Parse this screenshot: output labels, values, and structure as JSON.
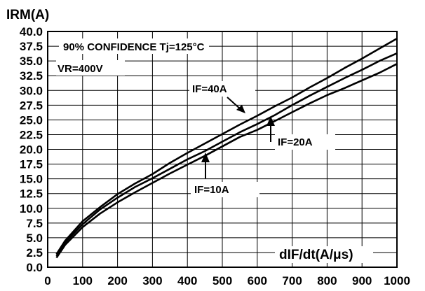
{
  "chart_data": {
    "type": "line",
    "ylabel": "IRM(A)",
    "xlabel": "dIF/dt(A/μs)",
    "xlim": [
      0,
      1000
    ],
    "ylim": [
      0,
      40
    ],
    "x_ticks": [
      0,
      100,
      200,
      300,
      400,
      500,
      600,
      700,
      800,
      900,
      1000
    ],
    "x_tick_labels": [
      "0",
      "100",
      "200",
      "300",
      "400",
      "500",
      "600",
      "700",
      "800",
      "900",
      "1000"
    ],
    "y_ticks": [
      0,
      2.5,
      5,
      7.5,
      10,
      12.5,
      15,
      17.5,
      20,
      22.5,
      25,
      27.5,
      30,
      32.5,
      35,
      37.5,
      40
    ],
    "y_tick_labels": [
      "0.0",
      "2.5",
      "5.0",
      "7.5",
      "10.0",
      "12.5",
      "15.0",
      "17.5",
      "20.0",
      "22.5",
      "25.0",
      "27.5",
      "30.0",
      "32.5",
      "35.0",
      "37.5",
      "40.0"
    ],
    "grid": true,
    "annotations": {
      "confidence": "90% CONFIDENCE Tj=125°C",
      "voltage": "VR=400V"
    },
    "series": [
      {
        "name": "IF=40A",
        "x": [
          25,
          50,
          100,
          150,
          200,
          250,
          300,
          350,
          400,
          450,
          500,
          550,
          600,
          650,
          700,
          750,
          800,
          850,
          900,
          950,
          1000
        ],
        "y": [
          2.2,
          4.5,
          7.8,
          10.2,
          12.4,
          14.2,
          15.8,
          17.7,
          19.4,
          21.0,
          22.6,
          24.2,
          25.7,
          27.3,
          28.8,
          30.5,
          32.1,
          33.8,
          35.4,
          37.1,
          38.8
        ]
      },
      {
        "name": "IF=20A",
        "x": [
          25,
          50,
          100,
          150,
          200,
          250,
          300,
          350,
          400,
          450,
          500,
          550,
          600,
          650,
          700,
          750,
          800,
          850,
          900,
          950,
          1000
        ],
        "y": [
          1.9,
          4.2,
          7.3,
          9.8,
          11.8,
          13.6,
          15.1,
          16.7,
          18.3,
          19.7,
          21.3,
          22.9,
          24.3,
          25.8,
          27.5,
          29.1,
          30.6,
          32.1,
          33.5,
          35.0,
          36.3
        ]
      },
      {
        "name": "IF=10A",
        "x": [
          25,
          50,
          100,
          150,
          200,
          250,
          300,
          350,
          400,
          450,
          500,
          550,
          600,
          650,
          700,
          750,
          800,
          850,
          900,
          950,
          1000
        ],
        "y": [
          1.6,
          3.8,
          6.8,
          9.1,
          11.0,
          12.7,
          14.3,
          15.9,
          17.4,
          18.9,
          20.5,
          22.1,
          23.3,
          24.8,
          26.3,
          27.8,
          29.2,
          30.4,
          31.7,
          33.0,
          34.5
        ]
      }
    ]
  }
}
